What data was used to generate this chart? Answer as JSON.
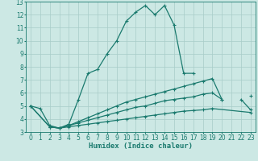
{
  "xlabel": "Humidex (Indice chaleur)",
  "bg_color": "#cce8e4",
  "grid_color": "#a8ccc8",
  "line_color": "#1a7a6e",
  "xlim": [
    -0.5,
    23.5
  ],
  "ylim": [
    3,
    13
  ],
  "xticks": [
    0,
    1,
    2,
    3,
    4,
    5,
    6,
    7,
    8,
    9,
    10,
    11,
    12,
    13,
    14,
    15,
    16,
    17,
    18,
    19,
    20,
    21,
    22,
    23
  ],
  "yticks": [
    3,
    4,
    5,
    6,
    7,
    8,
    9,
    10,
    11,
    12,
    13
  ],
  "line1_x": [
    0,
    1,
    2,
    3,
    4,
    5,
    6,
    7,
    8,
    9,
    10,
    11,
    12,
    13,
    14,
    15,
    16,
    17
  ],
  "line1_y": [
    5.0,
    4.8,
    3.5,
    3.3,
    3.6,
    5.5,
    7.5,
    7.8,
    9.0,
    10.0,
    11.5,
    12.2,
    12.7,
    12.0,
    12.7,
    11.2,
    7.5,
    7.5
  ],
  "line2_x": [
    2,
    3,
    4,
    5,
    6,
    7,
    8,
    9,
    10,
    11,
    12,
    13,
    14,
    15,
    16,
    17,
    18,
    19,
    20,
    21,
    22,
    23
  ],
  "line2_y": [
    3.4,
    3.3,
    3.5,
    3.8,
    4.1,
    4.4,
    4.7,
    5.0,
    5.3,
    5.5,
    5.7,
    5.9,
    6.1,
    6.3,
    6.5,
    6.7,
    6.9,
    7.1,
    5.5,
    null,
    null,
    5.8
  ],
  "line3_x": [
    0,
    2,
    3,
    4,
    5,
    6,
    7,
    8,
    9,
    10,
    11,
    12,
    13,
    14,
    15,
    16,
    17,
    18,
    19,
    20,
    21,
    22,
    23
  ],
  "line3_y": [
    5.0,
    3.4,
    3.3,
    3.5,
    3.7,
    3.9,
    4.1,
    4.3,
    4.5,
    4.7,
    4.9,
    5.0,
    5.2,
    5.4,
    5.5,
    5.6,
    5.7,
    5.9,
    6.0,
    5.5,
    null,
    5.5,
    4.7
  ],
  "line4_x": [
    0,
    2,
    3,
    4,
    5,
    6,
    7,
    8,
    9,
    10,
    11,
    12,
    13,
    14,
    15,
    16,
    17,
    18,
    19,
    23
  ],
  "line4_y": [
    5.0,
    3.4,
    3.3,
    3.4,
    3.5,
    3.6,
    3.7,
    3.8,
    3.9,
    4.0,
    4.1,
    4.2,
    4.3,
    4.4,
    4.5,
    4.6,
    4.65,
    4.7,
    4.8,
    4.5
  ]
}
